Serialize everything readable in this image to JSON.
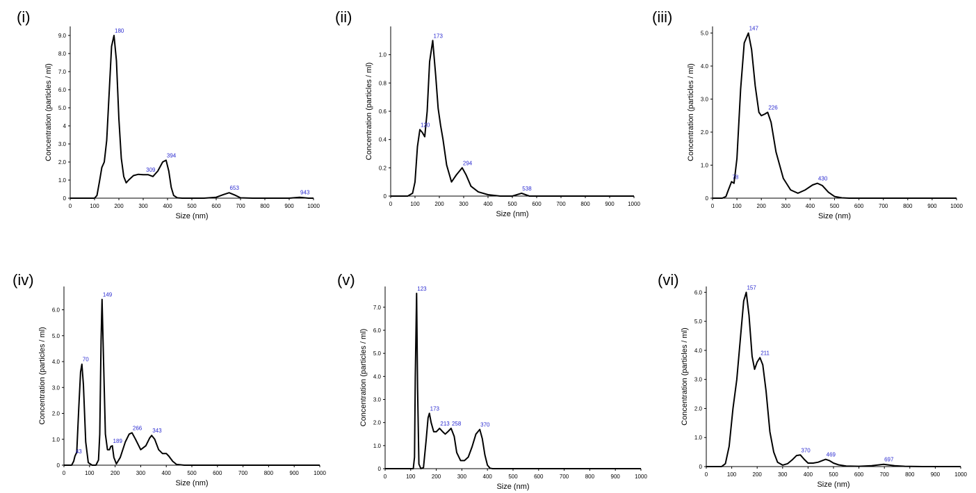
{
  "chart_data": [
    {
      "type": "line",
      "panel_label": "(i)",
      "xlabel": "Size (nm)",
      "ylabel": "Concentration (particles / ml)",
      "xlim": [
        0,
        1000
      ],
      "ylim": [
        0,
        9.5
      ],
      "x_ticks": [
        "0",
        "100",
        "200",
        "300",
        "400",
        "500",
        "600",
        "700",
        "800",
        "900",
        "1000"
      ],
      "y_ticks": [
        {
          "value": 0,
          "label": "0"
        },
        {
          "value": 1,
          "label": "1.0"
        },
        {
          "value": 2,
          "label": "2.0"
        },
        {
          "value": 3,
          "label": "3.0"
        },
        {
          "value": 4,
          "label": "4"
        },
        {
          "value": 5,
          "label": "5.0"
        },
        {
          "value": 6,
          "label": "6.0"
        },
        {
          "value": 7,
          "label": "7.0"
        },
        {
          "value": 8,
          "label": "8.0"
        },
        {
          "value": 9,
          "label": "9.0"
        }
      ],
      "peaks": [
        {
          "x": 180,
          "y": 9.0,
          "label": "180"
        },
        {
          "x": 309,
          "y": 1.3,
          "label": "309"
        },
        {
          "x": 394,
          "y": 2.1,
          "label": "394"
        },
        {
          "x": 653,
          "y": 0.3,
          "label": "653"
        },
        {
          "x": 943,
          "y": 0.05,
          "label": "943"
        }
      ],
      "series": [
        {
          "x": [
            0,
            100,
            110,
            120,
            130,
            140,
            150,
            160,
            170,
            180,
            190,
            200,
            210,
            220,
            230,
            240,
            260,
            280,
            300,
            320,
            340,
            360,
            380,
            394,
            405,
            415,
            425,
            440,
            460,
            500,
            550,
            600,
            630,
            653,
            675,
            700,
            750,
            800,
            850,
            900,
            943,
            980,
            1000
          ],
          "y": [
            0,
            0,
            0.15,
            0.9,
            1.7,
            2.0,
            3.2,
            5.8,
            8.4,
            9.0,
            7.6,
            4.4,
            2.2,
            1.2,
            0.85,
            1.0,
            1.25,
            1.32,
            1.3,
            1.3,
            1.2,
            1.5,
            2.0,
            2.1,
            1.5,
            0.6,
            0.15,
            0.02,
            0,
            0,
            0,
            0.05,
            0.2,
            0.3,
            0.18,
            0.02,
            0,
            0,
            0,
            0,
            0.05,
            0,
            0
          ]
        }
      ]
    },
    {
      "type": "line",
      "panel_label": "(ii)",
      "xlabel": "Size (nm)",
      "ylabel": "Concentration (particles / ml)",
      "xlim": [
        0,
        1000
      ],
      "ylim": [
        0,
        1.2
      ],
      "x_ticks": [
        "0",
        "100",
        "200",
        "300",
        "400",
        "500",
        "600",
        "700",
        "800",
        "900",
        "1000"
      ],
      "y_ticks": [
        {
          "value": 0,
          "label": "0"
        },
        {
          "value": 0.2,
          "label": "0.2"
        },
        {
          "value": 0.4,
          "label": "0.4"
        },
        {
          "value": 0.6,
          "label": "0.6"
        },
        {
          "value": 0.8,
          "label": "0.8"
        },
        {
          "value": 1.0,
          "label": "1.0"
        }
      ],
      "peaks": [
        {
          "x": 120,
          "y": 0.47,
          "label": "120"
        },
        {
          "x": 173,
          "y": 1.1,
          "label": "173"
        },
        {
          "x": 294,
          "y": 0.2,
          "label": "294"
        },
        {
          "x": 538,
          "y": 0.02,
          "label": "538"
        }
      ],
      "series": [
        {
          "x": [
            0,
            70,
            90,
            100,
            110,
            120,
            130,
            140,
            150,
            160,
            173,
            185,
            195,
            205,
            215,
            230,
            250,
            270,
            294,
            310,
            330,
            360,
            400,
            450,
            500,
            538,
            570,
            620,
            700,
            800,
            900,
            1000
          ],
          "y": [
            0,
            0,
            0.02,
            0.1,
            0.35,
            0.47,
            0.45,
            0.42,
            0.6,
            0.95,
            1.1,
            0.85,
            0.62,
            0.5,
            0.4,
            0.22,
            0.1,
            0.15,
            0.2,
            0.15,
            0.07,
            0.03,
            0.01,
            0,
            0,
            0.02,
            0,
            0,
            0,
            0,
            0,
            0
          ]
        }
      ]
    },
    {
      "type": "line",
      "panel_label": "(iii)",
      "xlabel": "Size (nm)",
      "ylabel": "Concentration (particles / ml)",
      "xlim": [
        0,
        1000
      ],
      "ylim": [
        0,
        5.2
      ],
      "x_ticks": [
        "0",
        "100",
        "200",
        "300",
        "400",
        "500",
        "600",
        "700",
        "800",
        "900",
        "1000"
      ],
      "y_ticks": [
        {
          "value": 0,
          "label": "0"
        },
        {
          "value": 1,
          "label": "1.0"
        },
        {
          "value": 2,
          "label": "2.0"
        },
        {
          "value": 3,
          "label": "3.0"
        },
        {
          "value": 4,
          "label": "4.0"
        },
        {
          "value": 5,
          "label": "5.0"
        }
      ],
      "peaks": [
        {
          "x": 78,
          "y": 0.5,
          "label": "78"
        },
        {
          "x": 147,
          "y": 5.0,
          "label": "147"
        },
        {
          "x": 226,
          "y": 2.6,
          "label": "226"
        },
        {
          "x": 430,
          "y": 0.45,
          "label": "430"
        }
      ],
      "series": [
        {
          "x": [
            0,
            40,
            55,
            65,
            78,
            88,
            100,
            115,
            130,
            147,
            160,
            175,
            190,
            200,
            215,
            226,
            240,
            260,
            290,
            320,
            350,
            380,
            410,
            430,
            450,
            475,
            500,
            530,
            560,
            600,
            700,
            800,
            900,
            1000
          ],
          "y": [
            0,
            0,
            0.05,
            0.25,
            0.5,
            0.45,
            1.2,
            3.3,
            4.7,
            5.0,
            4.5,
            3.4,
            2.6,
            2.5,
            2.55,
            2.6,
            2.3,
            1.4,
            0.6,
            0.25,
            0.15,
            0.25,
            0.4,
            0.45,
            0.38,
            0.18,
            0.05,
            0.01,
            0,
            0,
            0,
            0,
            0,
            0
          ]
        }
      ]
    },
    {
      "type": "line",
      "panel_label": "(iv)",
      "xlabel": "Size (nm)",
      "ylabel": "Concentration (particles / ml)",
      "xlim": [
        0,
        1000
      ],
      "ylim": [
        0,
        6.9
      ],
      "x_ticks": [
        "0",
        "100",
        "200",
        "300",
        "400",
        "500",
        "600",
        "700",
        "800",
        "900",
        "1000"
      ],
      "y_ticks": [
        {
          "value": 0,
          "label": "0"
        },
        {
          "value": 1,
          "label": "1.0"
        },
        {
          "value": 2,
          "label": "2.0"
        },
        {
          "value": 3,
          "label": "3.0"
        },
        {
          "value": 4,
          "label": "4.0"
        },
        {
          "value": 5,
          "label": "5.0"
        },
        {
          "value": 6,
          "label": "6.0"
        }
      ],
      "peaks": [
        {
          "x": 43,
          "y": 0.35,
          "label": "43"
        },
        {
          "x": 70,
          "y": 3.9,
          "label": "70"
        },
        {
          "x": 149,
          "y": 6.4,
          "label": "149"
        },
        {
          "x": 189,
          "y": 0.75,
          "label": "189"
        },
        {
          "x": 266,
          "y": 1.25,
          "label": "266"
        },
        {
          "x": 343,
          "y": 1.15,
          "label": "343"
        }
      ],
      "series": [
        {
          "x": [
            0,
            30,
            38,
            43,
            50,
            58,
            65,
            70,
            76,
            85,
            95,
            110,
            125,
            135,
            140,
            145,
            149,
            155,
            162,
            170,
            178,
            183,
            189,
            195,
            205,
            220,
            240,
            255,
            266,
            280,
            300,
            320,
            335,
            343,
            355,
            370,
            385,
            400,
            410,
            425,
            440,
            470,
            500,
            600,
            700,
            800,
            900,
            1000
          ],
          "y": [
            0,
            0,
            0.15,
            0.35,
            0.5,
            2.2,
            3.6,
            3.9,
            3.1,
            0.9,
            0.1,
            0,
            0,
            0.2,
            1.2,
            4.8,
            6.4,
            4.0,
            1.2,
            0.6,
            0.6,
            0.72,
            0.75,
            0.3,
            0.05,
            0.3,
            0.9,
            1.2,
            1.25,
            1.0,
            0.6,
            0.75,
            1.05,
            1.15,
            1.0,
            0.6,
            0.45,
            0.45,
            0.35,
            0.15,
            0.03,
            0,
            0,
            0,
            0,
            0,
            0,
            0
          ]
        }
      ]
    },
    {
      "type": "line",
      "panel_label": "(v)",
      "xlabel": "Size (nm)",
      "ylabel": "Concentration (particles / ml)",
      "xlim": [
        0,
        1000
      ],
      "ylim": [
        0,
        7.9
      ],
      "x_ticks": [
        "0",
        "100",
        "200",
        "300",
        "400",
        "500",
        "600",
        "700",
        "800",
        "900",
        "1000"
      ],
      "y_ticks": [
        {
          "value": 0,
          "label": "0"
        },
        {
          "value": 1,
          "label": "1.0"
        },
        {
          "value": 2,
          "label": "2.0"
        },
        {
          "value": 3,
          "label": "3.0"
        },
        {
          "value": 4,
          "label": "4.0"
        },
        {
          "value": 5,
          "label": "5.0"
        },
        {
          "value": 6,
          "label": "6.0"
        },
        {
          "value": 7,
          "label": "7.0"
        }
      ],
      "peaks": [
        {
          "x": 123,
          "y": 7.6,
          "label": "123"
        },
        {
          "x": 173,
          "y": 2.4,
          "label": "173"
        },
        {
          "x": 213,
          "y": 1.75,
          "label": "213"
        },
        {
          "x": 258,
          "y": 1.75,
          "label": "258"
        },
        {
          "x": 370,
          "y": 1.7,
          "label": "370"
        }
      ],
      "series": [
        {
          "x": [
            0,
            110,
            115,
            118,
            123,
            127,
            132,
            140,
            150,
            160,
            168,
            173,
            180,
            190,
            200,
            213,
            225,
            235,
            245,
            258,
            270,
            280,
            295,
            310,
            325,
            340,
            355,
            370,
            380,
            390,
            400,
            410,
            420,
            500,
            600,
            700,
            800,
            900,
            1000
          ],
          "y": [
            0,
            0,
            0.5,
            4.0,
            7.6,
            3.5,
            0.2,
            0,
            0.05,
            1.2,
            2.2,
            2.4,
            2.0,
            1.6,
            1.6,
            1.75,
            1.6,
            1.5,
            1.6,
            1.75,
            1.4,
            0.7,
            0.35,
            0.35,
            0.5,
            0.95,
            1.5,
            1.7,
            1.3,
            0.6,
            0.15,
            0.02,
            0,
            0,
            0,
            0,
            0,
            0,
            0
          ]
        }
      ]
    },
    {
      "type": "line",
      "panel_label": "(vi)",
      "xlabel": "Size (nm)",
      "ylabel": "Concentration (particles / ml)",
      "xlim": [
        0,
        1000
      ],
      "ylim": [
        0,
        6.2
      ],
      "x_ticks": [
        "0",
        "100",
        "200",
        "300",
        "400",
        "500",
        "600",
        "700",
        "800",
        "900",
        "1000"
      ],
      "y_ticks": [
        {
          "value": 0,
          "label": "0"
        },
        {
          "value": 1,
          "label": "1.0"
        },
        {
          "value": 2,
          "label": "2.0"
        },
        {
          "value": 3,
          "label": "3.0"
        },
        {
          "value": 4,
          "label": "4.0"
        },
        {
          "value": 5,
          "label": "5.0"
        },
        {
          "value": 6,
          "label": "6.0"
        }
      ],
      "peaks": [
        {
          "x": 157,
          "y": 6.0,
          "label": "157"
        },
        {
          "x": 211,
          "y": 3.75,
          "label": "211"
        },
        {
          "x": 370,
          "y": 0.4,
          "label": "370"
        },
        {
          "x": 469,
          "y": 0.25,
          "label": "469"
        },
        {
          "x": 697,
          "y": 0.08,
          "label": "697"
        }
      ],
      "series": [
        {
          "x": [
            0,
            60,
            75,
            90,
            105,
            120,
            135,
            147,
            157,
            168,
            180,
            190,
            200,
            211,
            222,
            235,
            250,
            265,
            280,
            300,
            320,
            340,
            355,
            370,
            385,
            400,
            420,
            440,
            455,
            469,
            485,
            500,
            520,
            550,
            600,
            650,
            697,
            740,
            780,
            850,
            900,
            1000
          ],
          "y": [
            0,
            0,
            0.1,
            0.7,
            2.0,
            3.0,
            4.5,
            5.7,
            6.0,
            5.2,
            3.8,
            3.35,
            3.6,
            3.75,
            3.5,
            2.6,
            1.2,
            0.5,
            0.15,
            0.05,
            0.1,
            0.25,
            0.38,
            0.4,
            0.25,
            0.12,
            0.12,
            0.15,
            0.2,
            0.25,
            0.2,
            0.12,
            0.06,
            0.02,
            0.01,
            0.03,
            0.08,
            0.03,
            0.01,
            0,
            0,
            0
          ]
        }
      ]
    }
  ]
}
